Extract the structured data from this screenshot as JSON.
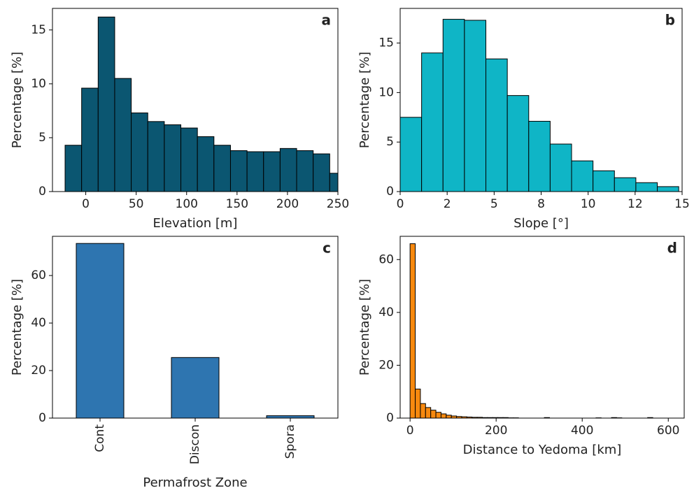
{
  "chart_data": [
    {
      "type": "histogram",
      "label": "a",
      "xlabel": "Elevation [m]",
      "ylabel": "Percentage [%]",
      "color": "#0b5671",
      "bins": [
        -20.5,
        -4.1,
        12.3,
        28.7,
        45.1,
        61.5,
        77.9,
        94.3,
        110.7,
        127.1,
        143.5,
        159.9,
        176.3,
        192.7,
        209.1,
        225.5,
        241.9,
        258.3
      ],
      "values": [
        4.3,
        9.6,
        16.2,
        10.5,
        7.3,
        6.5,
        6.2,
        5.9,
        5.1,
        4.3,
        3.8,
        3.7,
        3.7,
        4.0,
        3.8,
        3.5,
        1.7
      ],
      "xlim": [
        -33,
        250
      ],
      "xticks": [
        0,
        50,
        100,
        150,
        200,
        250
      ],
      "ylim": [
        0,
        17
      ],
      "yticks": [
        0,
        5,
        10,
        15
      ]
    },
    {
      "type": "histogram",
      "label": "b",
      "xlabel": "Slope [°]",
      "ylabel": "Percentage [%]",
      "color": "#0fb5c6",
      "bins": [
        0,
        1.14,
        2.28,
        3.42,
        4.56,
        5.7,
        6.84,
        7.98,
        9.12,
        10.26,
        11.4,
        12.54,
        13.68,
        14.82
      ],
      "values": [
        7.5,
        14.0,
        17.4,
        17.3,
        13.4,
        9.7,
        7.1,
        4.8,
        3.1,
        2.1,
        1.4,
        0.9,
        0.5
      ],
      "xlim": [
        0,
        15
      ],
      "xticks": [
        0,
        {
          "value": 2.5,
          "label": "2"
        },
        5,
        {
          "value": 7.5,
          "label": "8"
        },
        10,
        {
          "value": 12.5,
          "label": "12"
        },
        15
      ],
      "ylim": [
        0,
        18.5
      ],
      "yticks": [
        0,
        5,
        10,
        15
      ]
    },
    {
      "type": "bar",
      "label": "c",
      "xlabel": "Permafrost Zone",
      "ylabel": "Percentage [%]",
      "color": "#2e75b0",
      "categories": [
        "Cont",
        "Discon",
        "Spora"
      ],
      "values": [
        73.5,
        25.5,
        1.0
      ],
      "ylim": [
        0,
        76.5
      ],
      "yticks": [
        0,
        20,
        40,
        60
      ]
    },
    {
      "type": "histogram",
      "label": "d",
      "xlabel": "Distance to Yedoma [km]",
      "ylabel": "Percentage [%]",
      "color": "#f7890f",
      "bins": [
        0,
        12,
        24,
        36,
        48,
        60,
        72,
        84,
        96,
        108,
        120,
        132,
        144,
        156,
        168,
        180,
        192,
        204,
        216,
        228,
        240,
        252,
        264,
        276,
        288,
        300,
        312,
        324,
        336,
        348,
        360,
        372,
        384,
        396,
        408,
        420,
        432,
        444,
        456,
        468,
        480,
        492,
        504,
        516,
        528,
        540,
        552,
        564,
        576,
        588,
        600,
        612
      ],
      "values": [
        66,
        11,
        5.5,
        4,
        3,
        2.2,
        1.6,
        1.1,
        0.8,
        0.6,
        0.5,
        0.4,
        0.3,
        0.3,
        0.2,
        0.2,
        0.2,
        0.2,
        0.2,
        0.1,
        0.1,
        0,
        0,
        0,
        0,
        0,
        0.2,
        0,
        0,
        0,
        0,
        0,
        0,
        0,
        0,
        0,
        0.1,
        0,
        0,
        0.2,
        0.1,
        0,
        0,
        0,
        0,
        0,
        0.2,
        0,
        0,
        0,
        0
      ],
      "xlim": [
        -23,
        637
      ],
      "xticks": [
        0,
        200,
        400,
        600
      ],
      "ylim": [
        0,
        68.8
      ],
      "yticks": [
        0,
        20,
        40,
        60
      ]
    }
  ]
}
